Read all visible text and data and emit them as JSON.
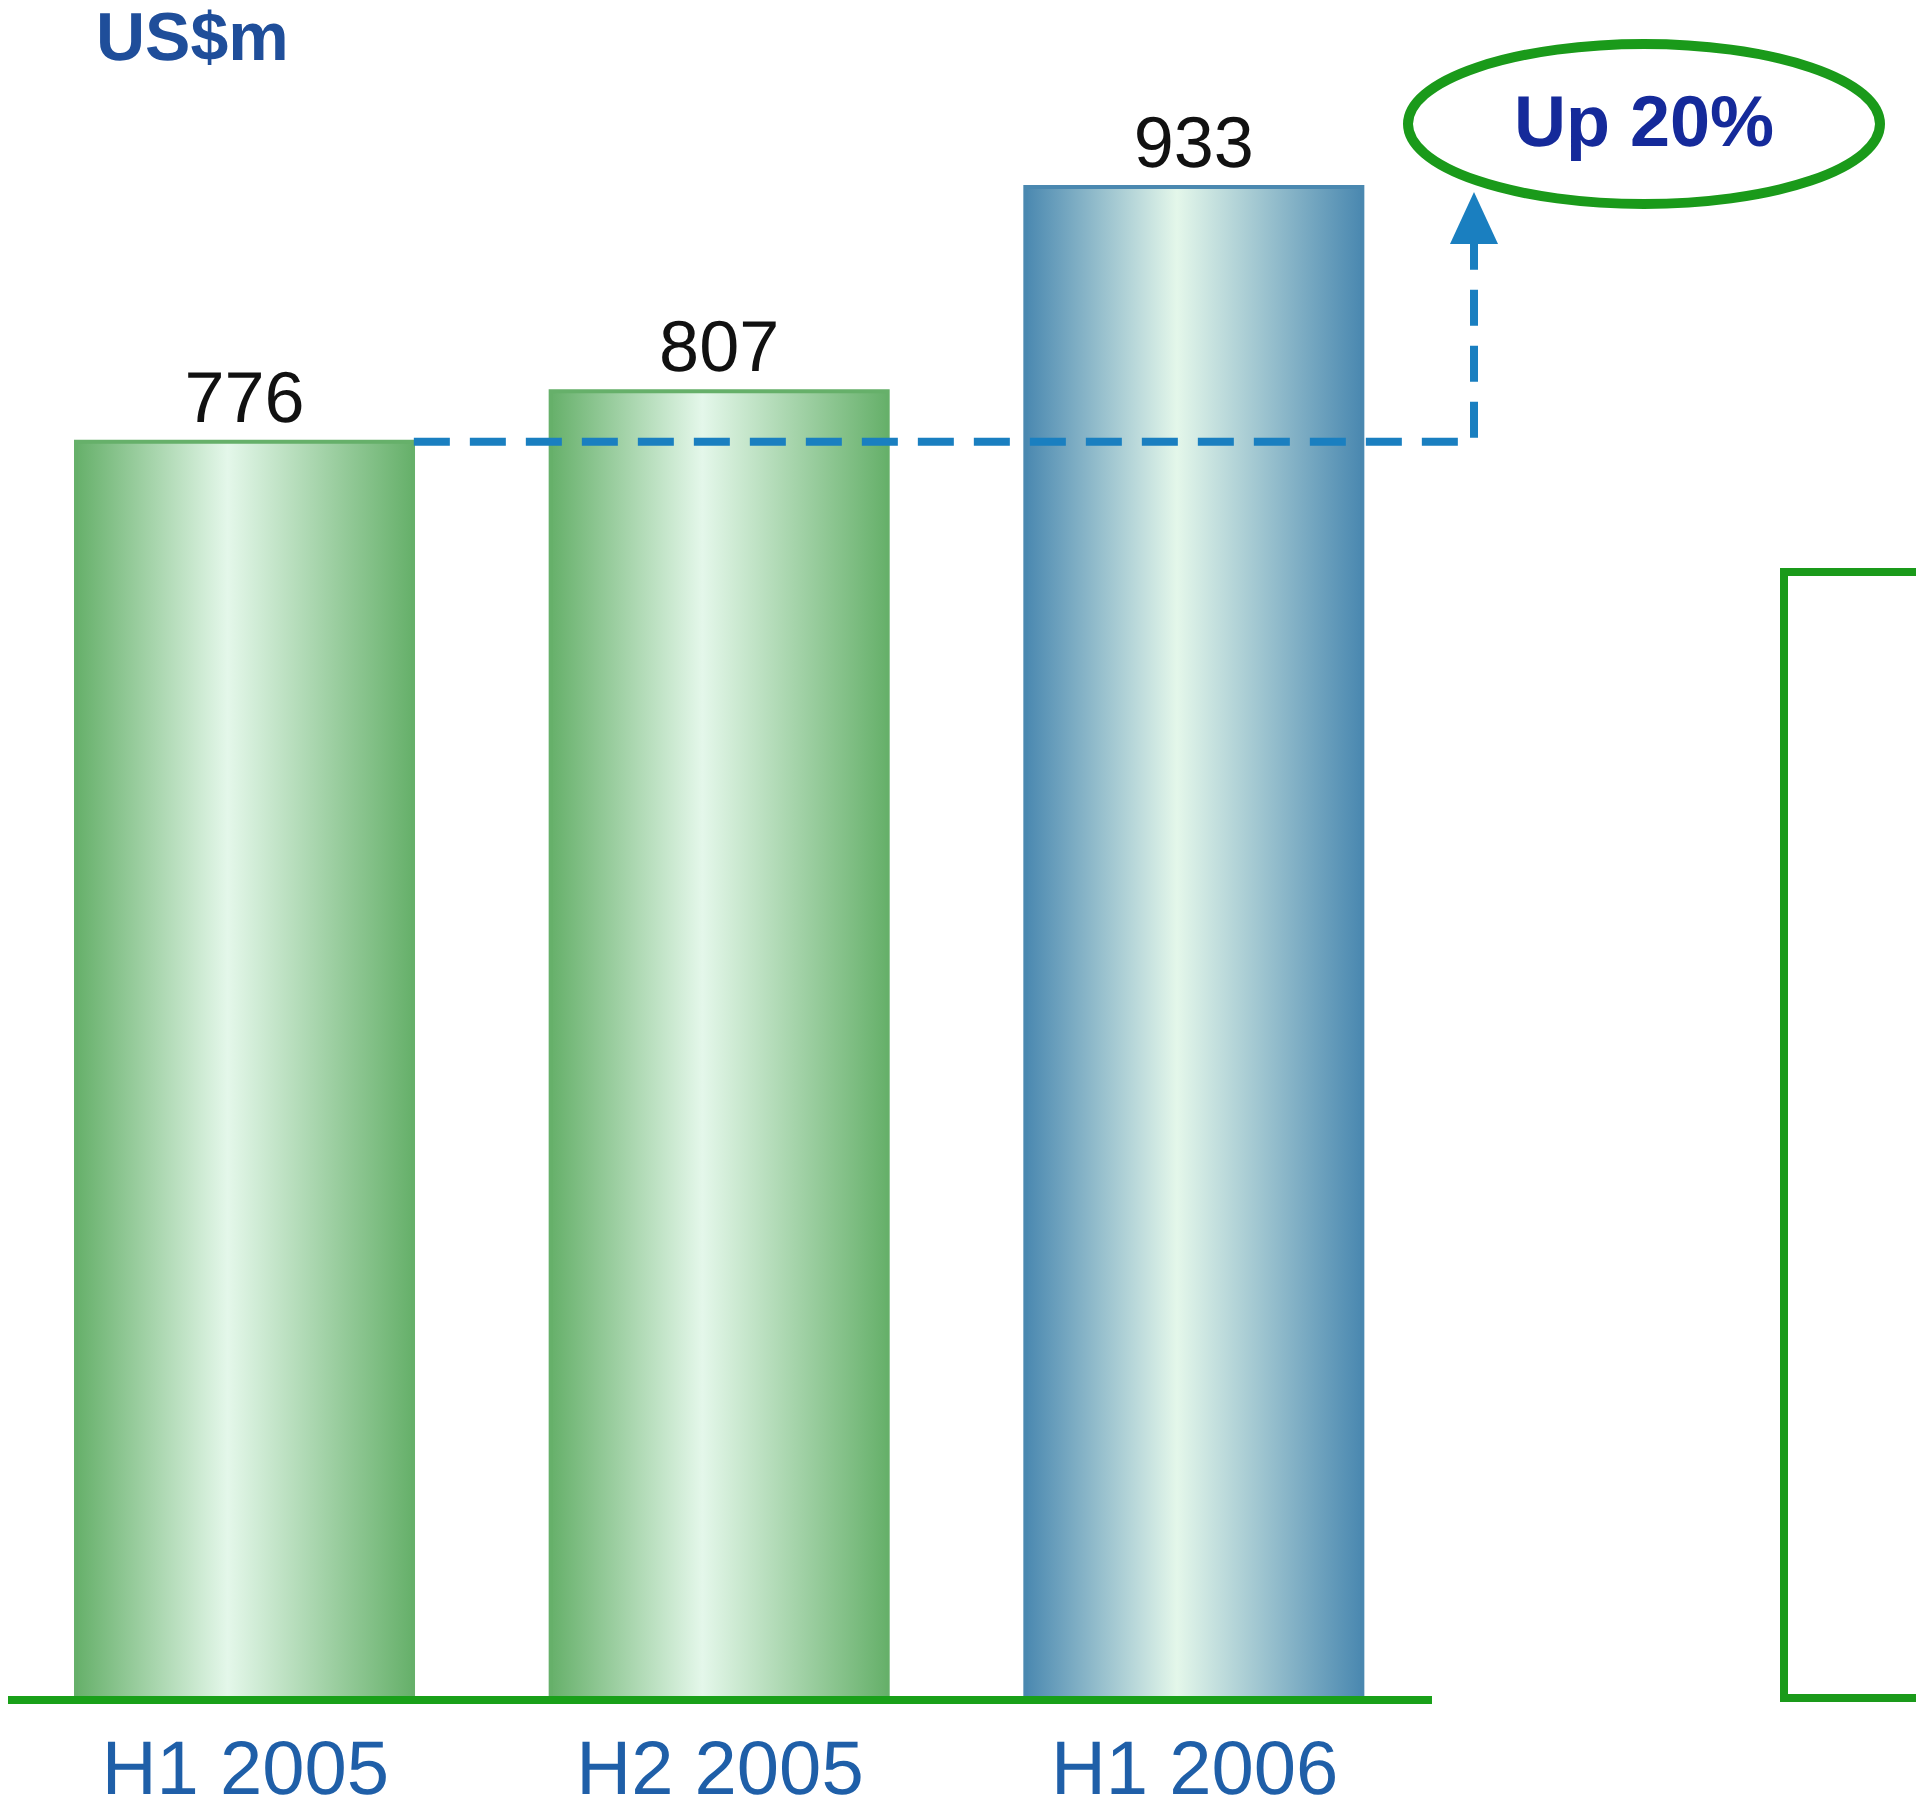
{
  "chart_data": {
    "type": "bar",
    "title": "US$m",
    "categories": [
      "H1 2005",
      "H2 2005",
      "H1 2006"
    ],
    "values": [
      776,
      807,
      933
    ],
    "colors": [
      "#66b06a",
      "#66b06a",
      "#4a88b0"
    ],
    "data_labels": true,
    "annotations": [
      "Up 20%"
    ]
  }
}
